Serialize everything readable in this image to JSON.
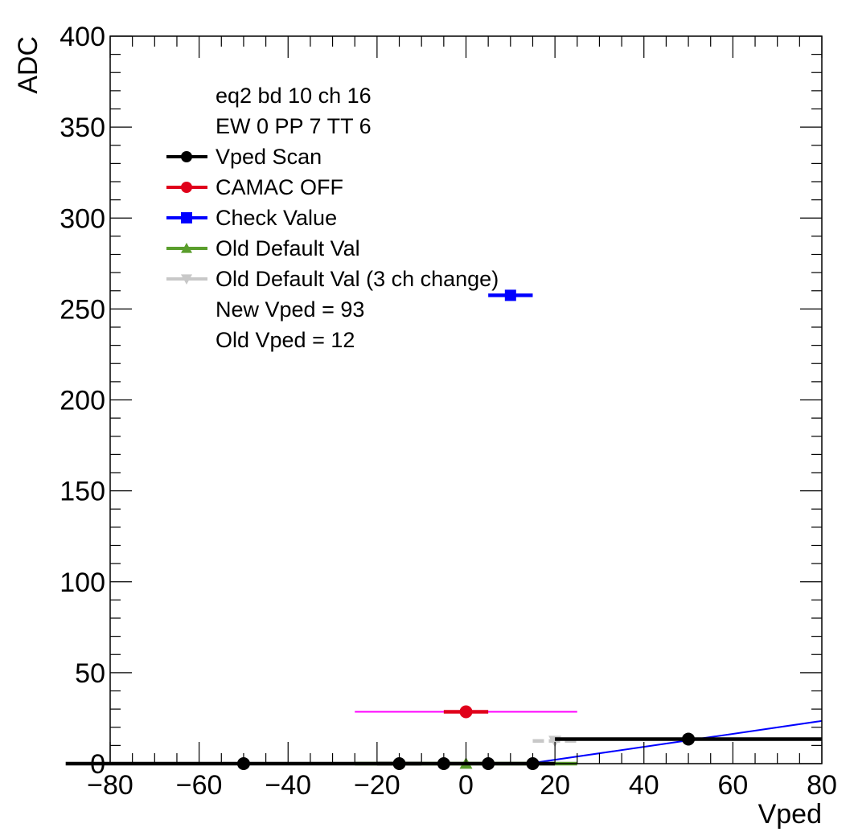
{
  "chart_data": {
    "type": "scatter",
    "xlabel": "Vped",
    "ylabel": "ADC",
    "xlim": [
      -80,
      80
    ],
    "ylim": [
      0,
      400
    ],
    "x_ticks": [
      -80,
      -60,
      -40,
      -20,
      0,
      20,
      40,
      60,
      80
    ],
    "y_ticks": [
      0,
      50,
      100,
      150,
      200,
      250,
      300,
      350,
      400
    ],
    "legend_position": "top-left",
    "legend_header": [
      "eq2 bd 10 ch 16",
      "EW 0 PP 7 TT 6"
    ],
    "legend_footer": [
      "New Vped = 93",
      "Old Vped = 12"
    ],
    "series": [
      {
        "name": "Vped Scan",
        "color": "#000000",
        "marker": "circle",
        "points": [
          {
            "x": -50,
            "y": 0,
            "xerr": 40
          },
          {
            "x": -15,
            "y": 0,
            "xerr": 5
          },
          {
            "x": -5,
            "y": 0,
            "xerr": 5
          },
          {
            "x": 5,
            "y": 0,
            "xerr": 5
          },
          {
            "x": 15,
            "y": 0,
            "xerr": 5
          },
          {
            "x": 50,
            "y": 13.5,
            "xerr": 30
          }
        ]
      },
      {
        "name": "CAMAC OFF",
        "color": "#e0001a",
        "marker": "circle",
        "points": [
          {
            "x": 0,
            "y": 28.5,
            "xerr": 5
          }
        ]
      },
      {
        "name": "Check Value",
        "color": "#0000ff",
        "marker": "square",
        "points": [
          {
            "x": 10,
            "y": 257.5,
            "xerr": 5
          }
        ]
      },
      {
        "name": "Old Default Val",
        "color": "#5a9e2c",
        "marker": "triangle-up",
        "points": [
          {
            "x": 0,
            "y": 0,
            "xerr": 25
          }
        ]
      },
      {
        "name": "Old Default Val (3 ch change)",
        "color": "#c8c8c8",
        "marker": "triangle-down",
        "points": [
          {
            "x": 20,
            "y": 12.5,
            "xerr": 5
          }
        ]
      }
    ],
    "extra_lines": [
      {
        "color": "#ff00ff",
        "x1": -25,
        "y1": 28.5,
        "x2": 25,
        "y2": 28.5,
        "width": "thin"
      },
      {
        "color": "#0000ff",
        "x1": 14,
        "y1": 0,
        "x2": 80,
        "y2": 23.5,
        "width": "thin"
      }
    ]
  }
}
